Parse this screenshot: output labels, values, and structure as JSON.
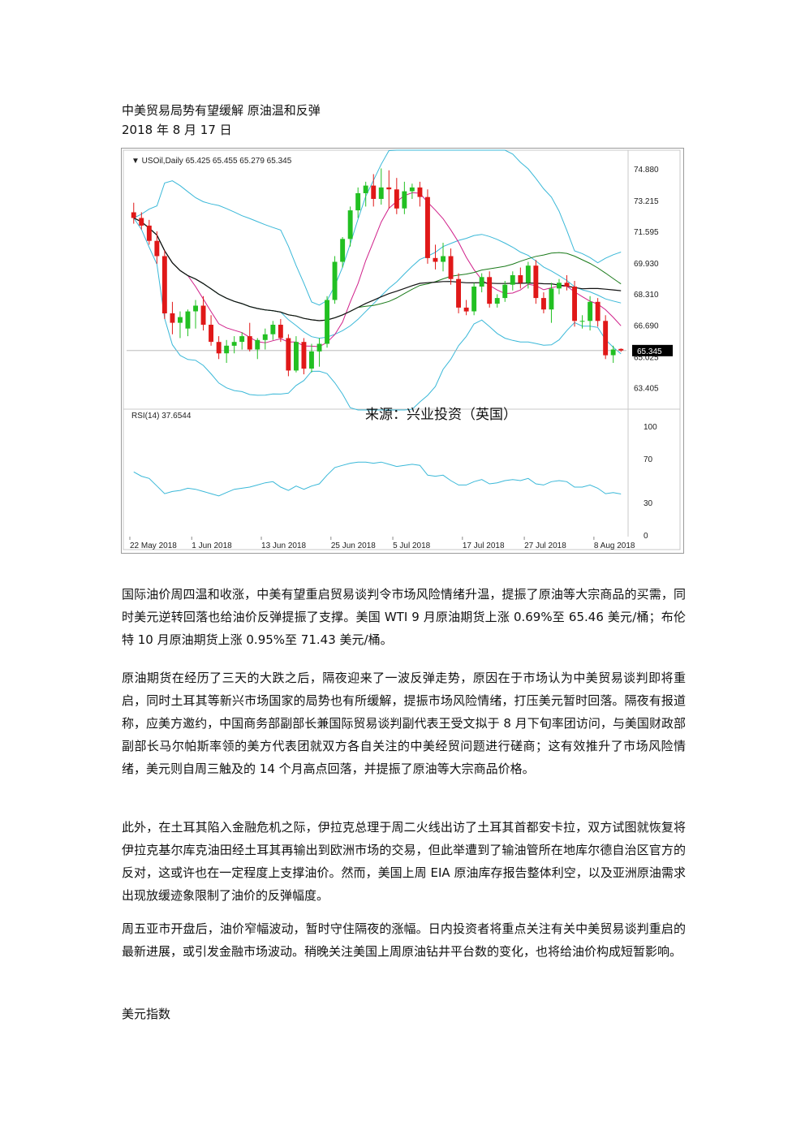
{
  "document": {
    "title": "中美贸易局势有望缓解 原油温和反弹",
    "date": "2018 年 8 月 17 日",
    "paragraphs": [
      "国际油价周四温和收涨，中美有望重启贸易谈判令市场风险情绪升温，提振了原油等大宗商品的买需，同时美元逆转回落也给油价反弹提振了支撑。美国 WTI 9 月原油期货上涨 0.69%至 65.46 美元/桶；布伦特 10 月原油期货上涨 0.95%至 71.43 美元/桶。",
      "原油期货在经历了三天的大跌之后，隔夜迎来了一波反弹走势，原因在于市场认为中美贸易谈判即将重启，同时土耳其等新兴市场国家的局势也有所缓解，提振市场风险情绪，打压美元暂时回落。隔夜有报道称，应美方邀约，中国商务部副部长兼国际贸易谈判副代表王受文拟于 8 月下旬率团访问，与美国财政部副部长马尔帕斯率领的美方代表团就双方各自关注的中美经贸问题进行磋商；这有效推升了市场风险情绪，美元则自周三触及的 14 个月高点回落，并提振了原油等大宗商品价格。",
      "此外，在土耳其陷入金融危机之际，伊拉克总理于周二火线出访了土耳其首都安卡拉，双方试图就恢复将伊拉克基尔库克油田经土耳其再输出到欧洲市场的交易，但此举遭到了输油管所在地库尔德自治区官方的反对，这或许也在一定程度上支撑油价。然而，美国上周 EIA 原油库存报告整体利空，以及亚洲原油需求出现放缓迹象限制了油价的反弹幅度。",
      "周五亚市开盘后，油价窄幅波动，暂时守住隔夜的涨幅。日内投资者将重点关注有关中美贸易谈判重启的最新进展，或引发金融市场波动。稍晚关注美国上周原油钻井平台数的变化，也将给油价构成短暂影响。"
    ],
    "next_heading": "美元指数"
  },
  "chart_data": {
    "type": "candlestick",
    "header": "USOil,Daily  65.425 65.455 65.279 65.345",
    "watermark": "来源：兴业投资（英国）",
    "price_ticks": [
      "74.880",
      "73.215",
      "71.595",
      "69.930",
      "68.310",
      "66.690",
      "65.025",
      "63.405"
    ],
    "price_tick_values": [
      74.88,
      73.215,
      71.595,
      69.93,
      68.31,
      66.69,
      65.025,
      63.405
    ],
    "last_price_label": "65.345",
    "last_price": 65.345,
    "ylim": [
      62.4,
      75.6
    ],
    "rsi_label": "RSI(14) 37.6544",
    "rsi_ticks": [
      "100",
      "70",
      "30",
      "0"
    ],
    "rsi_tick_values": [
      100,
      70,
      30,
      0
    ],
    "x_labels": [
      "22 May 2018",
      "1 Jun 2018",
      "13 Jun 2018",
      "25 Jun 2018",
      "5 Jul 2018",
      "17 Jul 2018",
      "27 Jul 2018",
      "8 Aug 2018"
    ],
    "x_label_index": [
      0,
      8,
      17,
      26,
      34,
      43,
      51,
      60
    ],
    "candles": [
      {
        "o": 72.6,
        "h": 73.1,
        "l": 72.0,
        "c": 72.3
      },
      {
        "o": 72.3,
        "h": 72.6,
        "l": 71.7,
        "c": 71.9
      },
      {
        "o": 71.9,
        "h": 72.2,
        "l": 70.9,
        "c": 71.1
      },
      {
        "o": 71.1,
        "h": 71.6,
        "l": 69.9,
        "c": 70.3
      },
      {
        "o": 70.3,
        "h": 70.6,
        "l": 67.0,
        "c": 67.3
      },
      {
        "o": 67.3,
        "h": 67.9,
        "l": 66.2,
        "c": 66.8
      },
      {
        "o": 66.8,
        "h": 67.4,
        "l": 66.0,
        "c": 67.1
      },
      {
        "o": 66.5,
        "h": 67.5,
        "l": 66.1,
        "c": 67.4
      },
      {
        "o": 67.4,
        "h": 68.0,
        "l": 66.5,
        "c": 67.7
      },
      {
        "o": 67.7,
        "h": 68.2,
        "l": 66.4,
        "c": 66.7
      },
      {
        "o": 66.7,
        "h": 67.2,
        "l": 65.6,
        "c": 65.8
      },
      {
        "o": 65.8,
        "h": 66.1,
        "l": 64.9,
        "c": 65.2
      },
      {
        "o": 65.2,
        "h": 65.9,
        "l": 64.7,
        "c": 65.6
      },
      {
        "o": 65.6,
        "h": 66.1,
        "l": 65.2,
        "c": 65.8
      },
      {
        "o": 65.8,
        "h": 66.3,
        "l": 65.4,
        "c": 66.1
      },
      {
        "o": 66.1,
        "h": 66.8,
        "l": 65.3,
        "c": 65.4
      },
      {
        "o": 65.4,
        "h": 66.0,
        "l": 64.9,
        "c": 65.9
      },
      {
        "o": 65.9,
        "h": 66.5,
        "l": 65.4,
        "c": 66.2
      },
      {
        "o": 66.2,
        "h": 66.9,
        "l": 65.9,
        "c": 66.7
      },
      {
        "o": 66.7,
        "h": 67.0,
        "l": 65.8,
        "c": 66.0
      },
      {
        "o": 66.0,
        "h": 66.2,
        "l": 64.0,
        "c": 64.3
      },
      {
        "o": 64.3,
        "h": 66.1,
        "l": 64.2,
        "c": 65.8
      },
      {
        "o": 65.8,
        "h": 66.0,
        "l": 64.1,
        "c": 64.4
      },
      {
        "o": 64.4,
        "h": 65.7,
        "l": 64.2,
        "c": 65.3
      },
      {
        "o": 65.3,
        "h": 66.0,
        "l": 64.5,
        "c": 65.7
      },
      {
        "o": 65.7,
        "h": 68.2,
        "l": 65.5,
        "c": 68.0
      },
      {
        "o": 68.0,
        "h": 70.3,
        "l": 67.8,
        "c": 70.0
      },
      {
        "o": 70.0,
        "h": 71.3,
        "l": 69.7,
        "c": 71.2
      },
      {
        "o": 71.2,
        "h": 72.9,
        "l": 70.8,
        "c": 72.7
      },
      {
        "o": 72.7,
        "h": 73.9,
        "l": 72.3,
        "c": 73.6
      },
      {
        "o": 73.6,
        "h": 74.2,
        "l": 72.9,
        "c": 74.0
      },
      {
        "o": 74.0,
        "h": 74.6,
        "l": 72.9,
        "c": 73.3
      },
      {
        "o": 73.3,
        "h": 74.9,
        "l": 73.0,
        "c": 73.9
      },
      {
        "o": 73.9,
        "h": 74.8,
        "l": 72.8,
        "c": 73.8
      },
      {
        "o": 73.8,
        "h": 74.4,
        "l": 72.5,
        "c": 72.8
      },
      {
        "o": 72.8,
        "h": 74.2,
        "l": 72.5,
        "c": 73.7
      },
      {
        "o": 73.7,
        "h": 74.1,
        "l": 73.3,
        "c": 73.9
      },
      {
        "o": 73.9,
        "h": 74.2,
        "l": 72.9,
        "c": 73.4
      },
      {
        "o": 73.4,
        "h": 73.8,
        "l": 69.9,
        "c": 70.2
      },
      {
        "o": 70.2,
        "h": 70.9,
        "l": 69.6,
        "c": 70.0
      },
      {
        "o": 70.0,
        "h": 71.0,
        "l": 69.5,
        "c": 70.3
      },
      {
        "o": 70.3,
        "h": 70.7,
        "l": 68.8,
        "c": 69.1
      },
      {
        "o": 69.1,
        "h": 69.4,
        "l": 67.3,
        "c": 67.6
      },
      {
        "o": 67.6,
        "h": 68.0,
        "l": 67.2,
        "c": 67.4
      },
      {
        "o": 67.4,
        "h": 68.9,
        "l": 67.2,
        "c": 68.7
      },
      {
        "o": 68.7,
        "h": 69.4,
        "l": 68.4,
        "c": 69.2
      },
      {
        "o": 69.2,
        "h": 69.5,
        "l": 67.6,
        "c": 67.8
      },
      {
        "o": 67.8,
        "h": 68.3,
        "l": 67.6,
        "c": 68.1
      },
      {
        "o": 68.1,
        "h": 69.0,
        "l": 67.9,
        "c": 68.8
      },
      {
        "o": 68.8,
        "h": 69.5,
        "l": 68.5,
        "c": 69.3
      },
      {
        "o": 69.3,
        "h": 69.7,
        "l": 68.6,
        "c": 68.9
      },
      {
        "o": 68.9,
        "h": 70.0,
        "l": 68.6,
        "c": 69.8
      },
      {
        "o": 69.8,
        "h": 70.1,
        "l": 67.8,
        "c": 68.1
      },
      {
        "o": 68.1,
        "h": 68.4,
        "l": 67.3,
        "c": 67.5
      },
      {
        "o": 67.5,
        "h": 68.9,
        "l": 66.8,
        "c": 68.6
      },
      {
        "o": 68.6,
        "h": 69.1,
        "l": 68.3,
        "c": 68.9
      },
      {
        "o": 68.9,
        "h": 69.3,
        "l": 68.5,
        "c": 68.7
      },
      {
        "o": 68.7,
        "h": 69.0,
        "l": 66.6,
        "c": 66.9
      },
      {
        "o": 66.9,
        "h": 67.2,
        "l": 66.5,
        "c": 66.9
      },
      {
        "o": 66.9,
        "h": 68.2,
        "l": 66.4,
        "c": 67.9
      },
      {
        "o": 67.9,
        "h": 68.1,
        "l": 66.6,
        "c": 66.9
      },
      {
        "o": 66.9,
        "h": 67.2,
        "l": 64.9,
        "c": 65.1
      },
      {
        "o": 65.1,
        "h": 65.6,
        "l": 64.7,
        "c": 65.4
      },
      {
        "o": 65.43,
        "h": 65.46,
        "l": 65.28,
        "c": 65.35
      }
    ],
    "rsi": [
      58,
      54,
      52,
      45,
      38,
      40,
      41,
      43,
      42,
      40,
      38,
      36,
      39,
      42,
      43,
      44,
      46,
      48,
      49,
      44,
      41,
      45,
      42,
      45,
      47,
      55,
      62,
      64,
      66,
      67,
      67,
      66,
      67,
      65,
      63,
      64,
      65,
      64,
      55,
      54,
      55,
      50,
      46,
      46,
      49,
      51,
      47,
      48,
      50,
      51,
      50,
      52,
      47,
      46,
      49,
      50,
      49,
      44,
      44,
      46,
      43,
      38,
      39,
      37.7
    ],
    "colors": {
      "up": "#22c022",
      "down": "#e01818",
      "band": "#3ab8d8",
      "ma_fast": "#d0208a",
      "ma_mid": "#1a7a1a",
      "ma_slow": "#111111",
      "rsi": "#3ab8d8"
    }
  }
}
